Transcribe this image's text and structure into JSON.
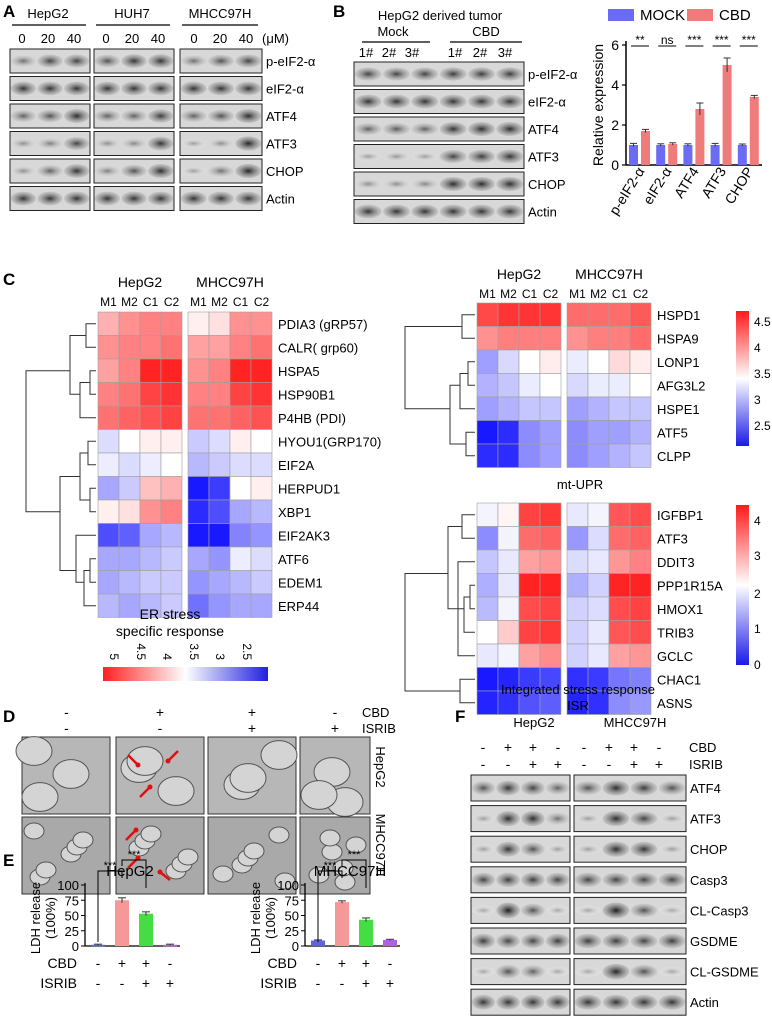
{
  "panels": {
    "A": {
      "label": "A",
      "cell_lines": [
        "HepG2",
        "HUH7",
        "MHCC97H"
      ],
      "doses": [
        "0",
        "20",
        "40"
      ],
      "unit": "(μM)",
      "rows": [
        "p-eIF2-α",
        "eIF2-α",
        "ATF4",
        "ATF3",
        "CHOP",
        "Actin"
      ]
    },
    "B": {
      "label": "B",
      "title": "HepG2  derived  tumor",
      "groups": [
        "Mock",
        "CBD"
      ],
      "lanes": [
        "1#",
        "2#",
        "3#",
        "1#",
        "2#",
        "3#"
      ],
      "rows": [
        "p-eIF2-α",
        "eIF2-α",
        "ATF4",
        "ATF3",
        "CHOP",
        "Actin"
      ]
    },
    "C": {
      "label": "C",
      "heat1": {
        "groups": [
          "HepG2",
          "MHCC97H"
        ],
        "cols": [
          "M1",
          "M2",
          "C1",
          "C2"
        ],
        "genes": [
          "PDIA3 (gRP57)",
          "CALR( grp60)",
          "HSPA5",
          "HSP90B1",
          "P4HB (PDI)",
          "HYOU1(GRP170)",
          "EIF2A",
          "HERPUD1",
          "XBP1",
          "EIF2AK3",
          "ATF6",
          "EDEM1",
          "ERP44"
        ],
        "values": [
          [
            4.0,
            4.2,
            4.3,
            4.3,
            3.6,
            3.7,
            4.2,
            4.2
          ],
          [
            4.2,
            4.3,
            4.3,
            4.4,
            4.1,
            4.1,
            4.3,
            4.4
          ],
          [
            4.1,
            4.3,
            4.9,
            4.9,
            4.2,
            4.3,
            4.9,
            4.9
          ],
          [
            4.3,
            4.4,
            4.7,
            4.8,
            4.3,
            4.3,
            4.7,
            4.8
          ],
          [
            4.4,
            4.5,
            4.6,
            4.7,
            4.4,
            4.4,
            4.5,
            4.6
          ],
          [
            3.3,
            3.5,
            3.6,
            3.6,
            3.2,
            3.3,
            3.6,
            3.5
          ],
          [
            3.4,
            3.3,
            3.4,
            3.5,
            3.1,
            3.2,
            3.3,
            3.3
          ],
          [
            3.0,
            3.2,
            3.9,
            4.0,
            2.2,
            2.4,
            3.5,
            3.6
          ],
          [
            3.6,
            3.7,
            4.2,
            4.3,
            2.3,
            2.5,
            3.0,
            3.1
          ],
          [
            2.5,
            2.6,
            3.0,
            3.1,
            2.1,
            2.2,
            2.8,
            2.9
          ],
          [
            3.0,
            3.0,
            3.1,
            3.2,
            3.0,
            2.9,
            3.4,
            3.3
          ],
          [
            3.0,
            3.1,
            3.2,
            3.2,
            2.9,
            3.0,
            3.1,
            3.2
          ],
          [
            3.1,
            3.0,
            3.1,
            3.2,
            2.7,
            2.9,
            3.0,
            3.0
          ]
        ],
        "caption": [
          "ER stress",
          "specific response"
        ],
        "legend_ticks": [
          "5",
          "4.5",
          "4",
          "3.5",
          "3",
          "2.5"
        ]
      },
      "heat2": {
        "groups": [
          "HepG2",
          "MHCC97H"
        ],
        "cols": [
          "M1",
          "M2",
          "C1",
          "C2"
        ],
        "genes": [
          "HSPD1",
          "HSPA9",
          "LONP1",
          "AFG3L2",
          "HSPE1",
          "ATF5",
          "CLPP"
        ],
        "values": [
          [
            4.5,
            4.6,
            4.6,
            4.6,
            4.3,
            4.3,
            4.3,
            4.4
          ],
          [
            4.1,
            4.2,
            4.2,
            4.2,
            4.1,
            4.2,
            4.2,
            4.3
          ],
          [
            3.0,
            3.3,
            3.5,
            3.6,
            3.4,
            3.5,
            3.7,
            3.6
          ],
          [
            3.1,
            3.2,
            3.4,
            3.5,
            3.3,
            3.4,
            3.4,
            3.5
          ],
          [
            3.0,
            3.1,
            3.2,
            3.2,
            3.0,
            3.1,
            3.2,
            3.2
          ],
          [
            2.3,
            2.4,
            2.9,
            3.0,
            2.9,
            3.0,
            3.0,
            3.1
          ],
          [
            2.4,
            2.4,
            2.9,
            3.0,
            2.9,
            3.0,
            3.1,
            3.2
          ]
        ],
        "caption": "mt-UPR",
        "legend_ticks": [
          "4.5",
          "4",
          "3.5",
          "3",
          "2.5"
        ]
      },
      "heat3": {
        "genes": [
          "IGFBP1",
          "ATF3",
          "DDIT3",
          "PPP1R15A",
          "HMOX1",
          "TRIB3",
          "GCLC",
          "CHAC1",
          "ASNS"
        ],
        "values": [
          [
            2.1,
            2.3,
            4.0,
            4.1,
            2.0,
            2.1,
            3.8,
            3.9
          ],
          [
            1.2,
            2.1,
            3.6,
            3.7,
            1.3,
            1.9,
            3.6,
            3.7
          ],
          [
            1.7,
            2.0,
            3.1,
            3.2,
            1.9,
            2.0,
            3.2,
            3.4
          ],
          [
            1.5,
            2.0,
            4.3,
            4.3,
            1.5,
            1.8,
            4.3,
            4.3
          ],
          [
            1.6,
            2.1,
            3.9,
            4.0,
            1.8,
            1.9,
            3.9,
            4.0
          ],
          [
            2.2,
            2.7,
            4.0,
            4.1,
            1.8,
            2.0,
            3.8,
            3.9
          ],
          [
            2.0,
            2.1,
            3.1,
            3.3,
            1.8,
            2.0,
            3.1,
            3.2
          ],
          [
            0.2,
            0.3,
            0.5,
            0.6,
            0.4,
            0.5,
            1.0,
            1.1
          ],
          [
            0.3,
            0.4,
            0.7,
            0.8,
            0.3,
            0.4,
            1.2,
            1.3
          ]
        ],
        "caption": [
          "Integrated  stress response",
          "ISR"
        ],
        "legend_ticks": [
          "4",
          "3",
          "2",
          "1",
          "0"
        ]
      }
    },
    "D": {
      "label": "D",
      "treatments": [
        "CBD",
        "ISRIB"
      ],
      "cbd": [
        "-",
        "+",
        "+",
        "-"
      ],
      "isrib": [
        "-",
        "-",
        "+",
        "+"
      ],
      "row_labels": [
        "HepG2",
        "MHCC97H"
      ]
    },
    "E": {
      "label": "E",
      "ylabel": [
        "LDH release",
        "(100%)"
      ],
      "yticks": [
        "0",
        "25",
        "50",
        "75",
        "100"
      ],
      "row_labels": [
        "CBD",
        "ISRIB"
      ],
      "cbd": [
        "-",
        "+",
        "+",
        "-"
      ],
      "isrib": [
        "-",
        "-",
        "+",
        "+"
      ],
      "sig": "***"
    },
    "F": {
      "label": "F",
      "cell_lines": [
        "HepG2",
        "MHCC97H"
      ],
      "treatments": [
        "CBD",
        "ISRIB"
      ],
      "cbd": [
        "-",
        "+",
        "+",
        "-"
      ],
      "isrib": [
        "-",
        "-",
        "+",
        "+"
      ],
      "rows": [
        "ATF4",
        "ATF3",
        "CHOP",
        "Casp3",
        "CL-Casp3",
        "GSDME",
        "CL-GSDME",
        "Actin"
      ]
    }
  },
  "chart_data": [
    {
      "type": "bar",
      "title": "",
      "xlabel": "",
      "ylabel": "Relative expression",
      "categories": [
        "p-eIF2-α",
        "eIF2-α",
        "ATF4",
        "ATF3",
        "CHOP"
      ],
      "series": [
        {
          "name": "MOCK",
          "values": [
            1.0,
            1.0,
            1.0,
            1.0,
            1.0
          ],
          "errors": [
            0.08,
            0.06,
            0.06,
            0.08,
            0.05
          ]
        },
        {
          "name": "CBD",
          "values": [
            1.7,
            1.05,
            2.8,
            5.0,
            3.4
          ],
          "errors": [
            0.08,
            0.06,
            0.3,
            0.35,
            0.08
          ]
        }
      ],
      "significance": [
        "**",
        "ns",
        "***",
        "***",
        "***"
      ],
      "yticks": [
        "0",
        "2",
        "4",
        "6"
      ],
      "ylim": [
        0,
        6
      ],
      "colors": [
        "#6b6bf4",
        "#f07b7b"
      ],
      "legend": "top"
    },
    {
      "type": "bar",
      "title": "HepG2",
      "ylabel": "LDH release (100%)",
      "categories": [
        "CBD-/ISRIB-",
        "CBD+/ISRIB-",
        "CBD+/ISRIB+",
        "CBD-/ISRIB+"
      ],
      "values": [
        2,
        75,
        53,
        2
      ],
      "errors": [
        1,
        4,
        3,
        1
      ],
      "colors": [
        "#6060e0",
        "#f59898",
        "#44dd44",
        "#b060e0"
      ],
      "ylim": [
        0,
        100
      ]
    },
    {
      "type": "bar",
      "title": "MHCC97H",
      "ylabel": "LDH release (100%)",
      "categories": [
        "CBD-/ISRIB-",
        "CBD+/ISRIB-",
        "CBD+/ISRIB+",
        "CBD-/ISRIB+"
      ],
      "values": [
        9,
        72,
        43,
        10
      ],
      "errors": [
        1,
        2,
        3,
        1
      ],
      "colors": [
        "#6060e0",
        "#f59898",
        "#44dd44",
        "#b060e0"
      ],
      "ylim": [
        0,
        100
      ]
    }
  ]
}
